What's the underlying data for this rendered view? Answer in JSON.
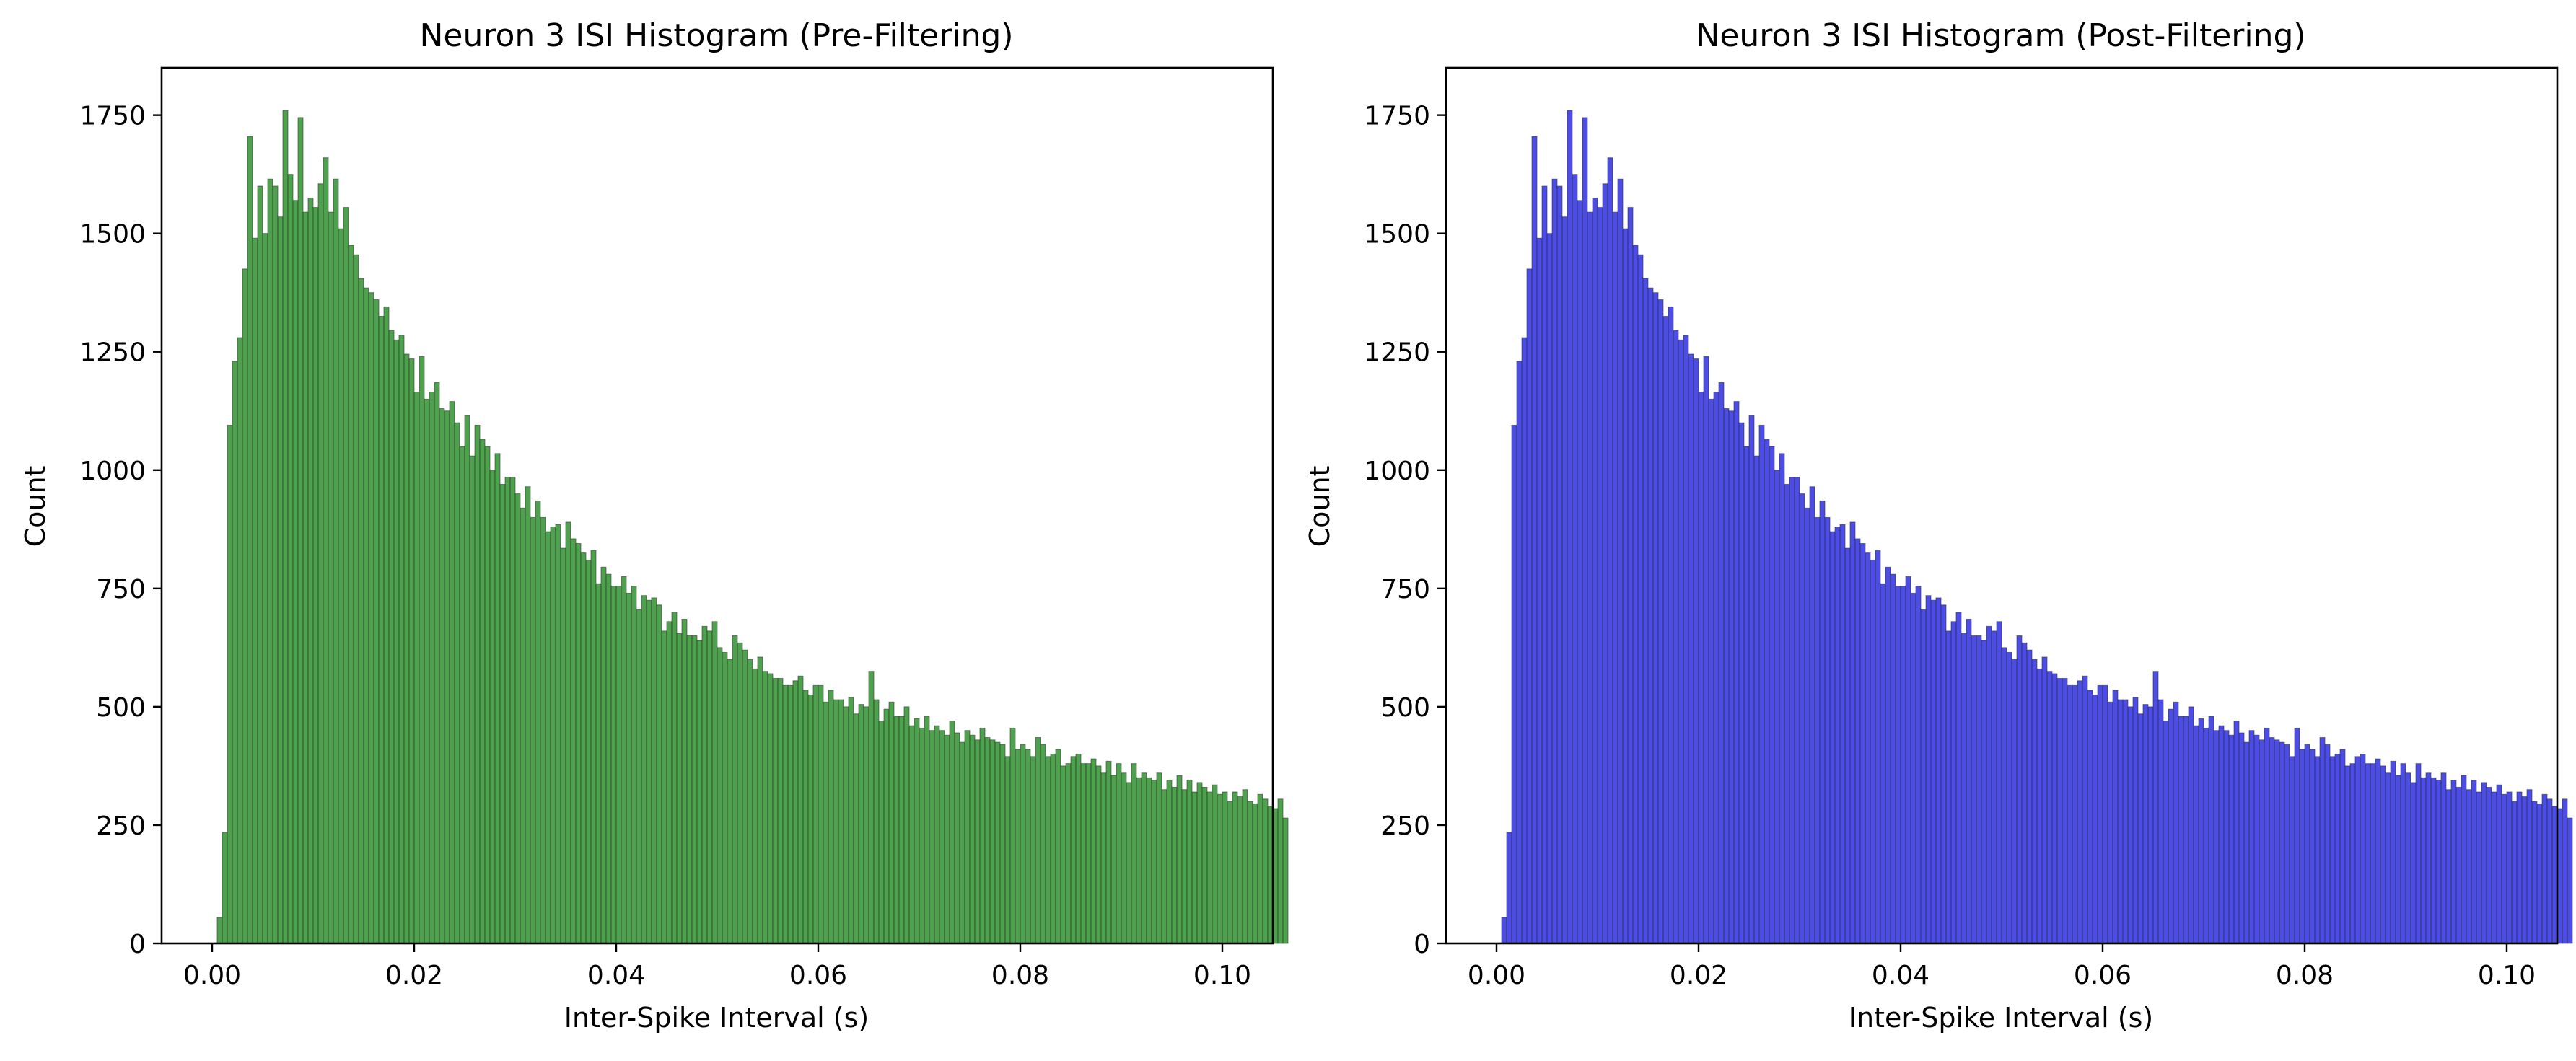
{
  "chart_data": [
    {
      "type": "bar",
      "title": "Neuron 3 ISI Histogram (Pre-Filtering)",
      "xlabel": "Inter-Spike Interval (s)",
      "ylabel": "Count",
      "xlim": [
        -0.005,
        0.105
      ],
      "ylim": [
        0,
        1850
      ],
      "xticks": [
        0.0,
        0.02,
        0.04,
        0.06,
        0.08,
        0.1
      ],
      "xtick_labels": [
        "0.00",
        "0.02",
        "0.04",
        "0.06",
        "0.08",
        "0.10"
      ],
      "yticks": [
        0,
        250,
        500,
        750,
        1000,
        1250,
        1500,
        1750
      ],
      "ytick_labels": [
        "0",
        "250",
        "500",
        "750",
        "1000",
        "1250",
        "1500",
        "1750"
      ],
      "bin_width": 0.0005,
      "bins_start": 0.0,
      "color": "#228b22",
      "values": [
        0,
        55,
        235,
        1095,
        1230,
        1280,
        1425,
        1705,
        1490,
        1600,
        1500,
        1615,
        1600,
        1535,
        1760,
        1625,
        1570,
        1745,
        1545,
        1575,
        1555,
        1605,
        1660,
        1545,
        1615,
        1510,
        1555,
        1475,
        1455,
        1405,
        1385,
        1375,
        1360,
        1325,
        1345,
        1295,
        1275,
        1285,
        1245,
        1235,
        1165,
        1240,
        1150,
        1165,
        1185,
        1130,
        1125,
        1145,
        1100,
        1050,
        1115,
        1030,
        1095,
        1065,
        1050,
        1000,
        1035,
        970,
        985,
        985,
        950,
        920,
        965,
        900,
        935,
        900,
        870,
        880,
        885,
        835,
        890,
        855,
        845,
        825,
        810,
        830,
        760,
        795,
        780,
        755,
        755,
        775,
        740,
        755,
        705,
        735,
        725,
        730,
        715,
        660,
        680,
        700,
        655,
        685,
        650,
        650,
        640,
        670,
        660,
        680,
        625,
        615,
        600,
        650,
        635,
        620,
        600,
        580,
        605,
        575,
        570,
        560,
        560,
        545,
        545,
        555,
        565,
        535,
        525,
        545,
        545,
        510,
        535,
        515,
        515,
        500,
        520,
        485,
        505,
        500,
        575,
        515,
        470,
        495,
        510,
        480,
        480,
        500,
        460,
        475,
        455,
        480,
        450,
        460,
        450,
        440,
        470,
        445,
        425,
        450,
        440,
        430,
        455,
        435,
        430,
        425,
        420,
        395,
        455,
        410,
        420,
        410,
        395,
        435,
        420,
        395,
        400,
        410,
        375,
        380,
        395,
        400,
        380,
        380,
        390,
        375,
        360,
        385,
        355,
        380,
        360,
        340,
        380,
        350,
        360,
        350,
        345,
        360,
        325,
        345,
        330,
        355,
        325,
        345,
        320,
        340,
        330,
        320,
        335,
        315,
        320,
        300,
        320,
        310,
        325,
        300,
        295,
        315,
        305,
        290,
        285,
        305,
        265
      ]
    },
    {
      "type": "bar",
      "title": "Neuron 3 ISI Histogram (Post-Filtering)",
      "xlabel": "Inter-Spike Interval (s)",
      "ylabel": "Count",
      "xlim": [
        -0.005,
        0.105
      ],
      "ylim": [
        0,
        1850
      ],
      "xticks": [
        0.0,
        0.02,
        0.04,
        0.06,
        0.08,
        0.1
      ],
      "xtick_labels": [
        "0.00",
        "0.02",
        "0.04",
        "0.06",
        "0.08",
        "0.10"
      ],
      "yticks": [
        0,
        250,
        500,
        750,
        1000,
        1250,
        1500,
        1750
      ],
      "ytick_labels": [
        "0",
        "250",
        "500",
        "750",
        "1000",
        "1250",
        "1500",
        "1750"
      ],
      "bin_width": 0.0005,
      "bins_start": 0.0,
      "color": "#1f1fe0",
      "values": [
        0,
        55,
        235,
        1095,
        1230,
        1280,
        1425,
        1705,
        1490,
        1600,
        1500,
        1615,
        1600,
        1535,
        1760,
        1625,
        1570,
        1745,
        1545,
        1575,
        1555,
        1605,
        1660,
        1545,
        1615,
        1510,
        1555,
        1475,
        1455,
        1405,
        1385,
        1375,
        1360,
        1325,
        1345,
        1295,
        1275,
        1285,
        1245,
        1235,
        1165,
        1240,
        1150,
        1165,
        1185,
        1130,
        1125,
        1145,
        1100,
        1050,
        1115,
        1030,
        1095,
        1065,
        1050,
        1000,
        1035,
        970,
        985,
        985,
        950,
        920,
        965,
        900,
        935,
        900,
        870,
        880,
        885,
        835,
        890,
        855,
        845,
        825,
        810,
        830,
        760,
        795,
        780,
        755,
        755,
        775,
        740,
        755,
        705,
        735,
        725,
        730,
        715,
        660,
        680,
        700,
        655,
        685,
        650,
        650,
        640,
        670,
        660,
        680,
        625,
        615,
        600,
        650,
        635,
        620,
        600,
        580,
        605,
        575,
        570,
        560,
        560,
        545,
        545,
        555,
        565,
        535,
        525,
        545,
        545,
        510,
        535,
        515,
        515,
        500,
        520,
        485,
        505,
        500,
        575,
        515,
        470,
        495,
        510,
        480,
        480,
        500,
        460,
        475,
        455,
        480,
        450,
        460,
        450,
        440,
        470,
        445,
        425,
        450,
        440,
        430,
        455,
        435,
        430,
        425,
        420,
        395,
        455,
        410,
        420,
        410,
        395,
        435,
        420,
        395,
        400,
        410,
        375,
        380,
        395,
        400,
        380,
        380,
        390,
        375,
        360,
        385,
        355,
        380,
        360,
        340,
        380,
        350,
        360,
        350,
        345,
        360,
        325,
        345,
        330,
        355,
        325,
        345,
        320,
        340,
        330,
        320,
        335,
        315,
        320,
        300,
        320,
        310,
        325,
        300,
        295,
        315,
        305,
        290,
        285,
        305,
        265
      ]
    }
  ]
}
